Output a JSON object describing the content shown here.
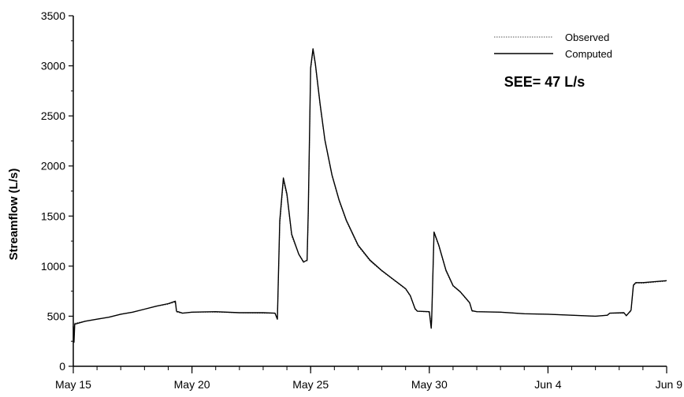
{
  "chart_data": {
    "type": "line",
    "ylabel": "Streamflow (L/s)",
    "xlabel": "",
    "ylim": [
      0,
      3500
    ],
    "yticks": [
      0,
      500,
      1000,
      1500,
      2000,
      2500,
      3000,
      3500
    ],
    "xlim": [
      0,
      25
    ],
    "x_unit": "day (May 15 = 0)",
    "xticks": [
      {
        "value": 0,
        "label": "May 15"
      },
      {
        "value": 5,
        "label": "May 20"
      },
      {
        "value": 10,
        "label": "May 25"
      },
      {
        "value": 15,
        "label": "May 30"
      },
      {
        "value": 20,
        "label": "Jun 4"
      },
      {
        "value": 25,
        "label": "Jun 9"
      }
    ],
    "minor_tick_step": 1,
    "grid": false,
    "legend_position": "top-right",
    "annotation": "SEE= 47 L/s",
    "series": [
      {
        "name": "Observed",
        "style": "dotted",
        "color": "#555555",
        "points": [
          [
            0.0,
            400
          ],
          [
            0.03,
            260
          ],
          [
            0.06,
            430
          ],
          [
            0.5,
            450
          ],
          [
            1.0,
            470
          ],
          [
            1.5,
            490
          ],
          [
            2.0,
            520
          ],
          [
            2.5,
            540
          ],
          [
            3.0,
            570
          ],
          [
            3.5,
            600
          ],
          [
            4.0,
            620
          ],
          [
            4.3,
            640
          ],
          [
            4.35,
            540
          ],
          [
            4.6,
            530
          ],
          [
            5.0,
            540
          ],
          [
            6.0,
            540
          ],
          [
            7.0,
            535
          ],
          [
            8.0,
            530
          ],
          [
            8.5,
            530
          ],
          [
            8.6,
            480
          ],
          [
            8.7,
            1400
          ],
          [
            8.85,
            1850
          ],
          [
            9.0,
            1700
          ],
          [
            9.2,
            1300
          ],
          [
            9.5,
            1120
          ],
          [
            9.7,
            1050
          ],
          [
            9.85,
            1050
          ],
          [
            9.9,
            1500
          ],
          [
            10.0,
            2950
          ],
          [
            10.1,
            3150
          ],
          [
            10.2,
            3000
          ],
          [
            10.4,
            2600
          ],
          [
            10.6,
            2250
          ],
          [
            10.9,
            1900
          ],
          [
            11.2,
            1650
          ],
          [
            11.5,
            1450
          ],
          [
            12.0,
            1200
          ],
          [
            12.5,
            1050
          ],
          [
            13.0,
            950
          ],
          [
            13.5,
            860
          ],
          [
            14.0,
            770
          ],
          [
            14.2,
            700
          ],
          [
            14.4,
            570
          ],
          [
            14.5,
            550
          ],
          [
            15.0,
            540
          ],
          [
            15.08,
            430
          ],
          [
            15.1,
            460
          ],
          [
            15.2,
            1330
          ],
          [
            15.4,
            1200
          ],
          [
            15.7,
            950
          ],
          [
            16.0,
            800
          ],
          [
            16.3,
            740
          ],
          [
            16.7,
            630
          ],
          [
            16.8,
            550
          ],
          [
            17.0,
            545
          ],
          [
            18.0,
            540
          ],
          [
            19.0,
            525
          ],
          [
            20.0,
            520
          ],
          [
            21.0,
            510
          ],
          [
            22.0,
            500
          ],
          [
            22.5,
            510
          ],
          [
            22.6,
            530
          ],
          [
            23.2,
            530
          ],
          [
            23.3,
            510
          ],
          [
            23.5,
            550
          ],
          [
            23.6,
            800
          ],
          [
            23.7,
            830
          ],
          [
            24.0,
            830
          ],
          [
            24.5,
            840
          ],
          [
            25.0,
            850
          ]
        ]
      },
      {
        "name": "Computed",
        "style": "solid",
        "color": "#000000",
        "points": [
          [
            0.0,
            400
          ],
          [
            0.03,
            240
          ],
          [
            0.06,
            420
          ],
          [
            0.5,
            450
          ],
          [
            1.0,
            470
          ],
          [
            1.5,
            490
          ],
          [
            2.0,
            520
          ],
          [
            2.5,
            540
          ],
          [
            3.0,
            570
          ],
          [
            3.5,
            600
          ],
          [
            4.0,
            625
          ],
          [
            4.3,
            650
          ],
          [
            4.35,
            550
          ],
          [
            4.6,
            530
          ],
          [
            5.0,
            540
          ],
          [
            6.0,
            545
          ],
          [
            7.0,
            535
          ],
          [
            8.0,
            535
          ],
          [
            8.5,
            530
          ],
          [
            8.6,
            470
          ],
          [
            8.7,
            1450
          ],
          [
            8.85,
            1880
          ],
          [
            9.0,
            1720
          ],
          [
            9.2,
            1320
          ],
          [
            9.5,
            1120
          ],
          [
            9.7,
            1040
          ],
          [
            9.85,
            1060
          ],
          [
            9.9,
            1550
          ],
          [
            10.0,
            2980
          ],
          [
            10.1,
            3170
          ],
          [
            10.2,
            3020
          ],
          [
            10.4,
            2620
          ],
          [
            10.6,
            2260
          ],
          [
            10.9,
            1910
          ],
          [
            11.2,
            1660
          ],
          [
            11.5,
            1460
          ],
          [
            12.0,
            1210
          ],
          [
            12.5,
            1060
          ],
          [
            13.0,
            955
          ],
          [
            13.5,
            865
          ],
          [
            14.0,
            775
          ],
          [
            14.2,
            705
          ],
          [
            14.4,
            575
          ],
          [
            14.5,
            550
          ],
          [
            15.0,
            545
          ],
          [
            15.08,
            380
          ],
          [
            15.1,
            470
          ],
          [
            15.2,
            1340
          ],
          [
            15.4,
            1210
          ],
          [
            15.7,
            960
          ],
          [
            16.0,
            805
          ],
          [
            16.3,
            745
          ],
          [
            16.7,
            635
          ],
          [
            16.8,
            555
          ],
          [
            17.0,
            545
          ],
          [
            18.0,
            540
          ],
          [
            19.0,
            525
          ],
          [
            20.0,
            520
          ],
          [
            21.0,
            510
          ],
          [
            22.0,
            500
          ],
          [
            22.5,
            510
          ],
          [
            22.6,
            530
          ],
          [
            23.2,
            535
          ],
          [
            23.3,
            505
          ],
          [
            23.5,
            560
          ],
          [
            23.6,
            810
          ],
          [
            23.7,
            835
          ],
          [
            24.0,
            835
          ],
          [
            24.5,
            845
          ],
          [
            25.0,
            855
          ]
        ]
      }
    ]
  }
}
